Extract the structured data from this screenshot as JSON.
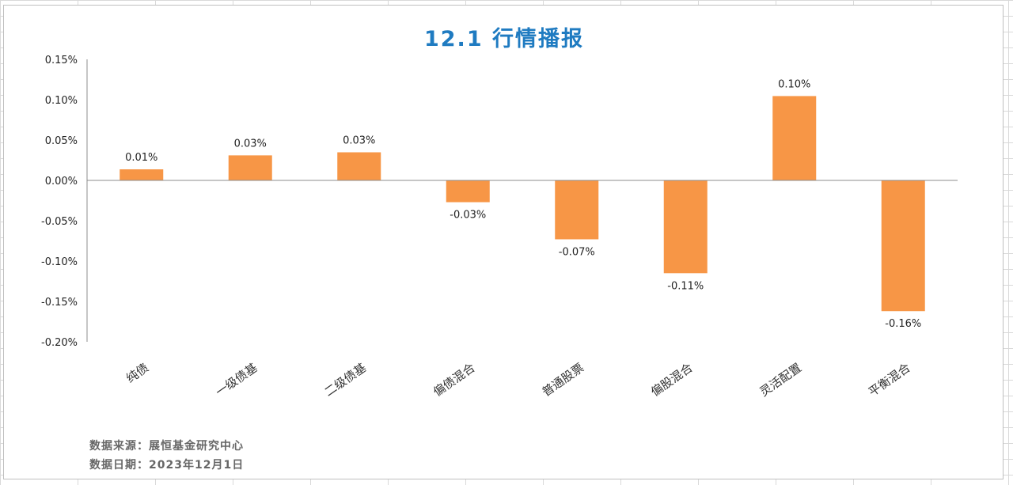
{
  "chart_data": {
    "type": "bar",
    "title": "12.1 行情播报",
    "categories": [
      "纯债",
      "一级债基",
      "二级债基",
      "偏债混合",
      "普通股票",
      "偏股混合",
      "灵活配置",
      "平衡混合"
    ],
    "values": [
      0.0137,
      0.031,
      0.0348,
      -0.027,
      -0.073,
      -0.115,
      0.1045,
      -0.162
    ],
    "data_labels": [
      "0.01%",
      "0.03%",
      "0.03%",
      "-0.03%",
      "-0.07%",
      "-0.11%",
      "0.10%",
      "-0.16%"
    ],
    "y_ticks": [
      "0.15%",
      "0.10%",
      "0.05%",
      "0.00%",
      "-0.05%",
      "-0.10%",
      "-0.15%",
      "-0.20%"
    ],
    "y_tick_values": [
      0.15,
      0.1,
      0.05,
      0.0,
      -0.05,
      -0.1,
      -0.15,
      -0.2
    ],
    "ylim": [
      -0.2,
      0.15
    ],
    "unit": "%",
    "bar_color": "#f79646",
    "grid": false,
    "legend": "none"
  },
  "footer": {
    "source": "数据来源：展恒基金研究中心",
    "date": "数据日期：2023年12月1日"
  },
  "colors": {
    "title": "#1f7bc1",
    "bar": "#f79646"
  }
}
